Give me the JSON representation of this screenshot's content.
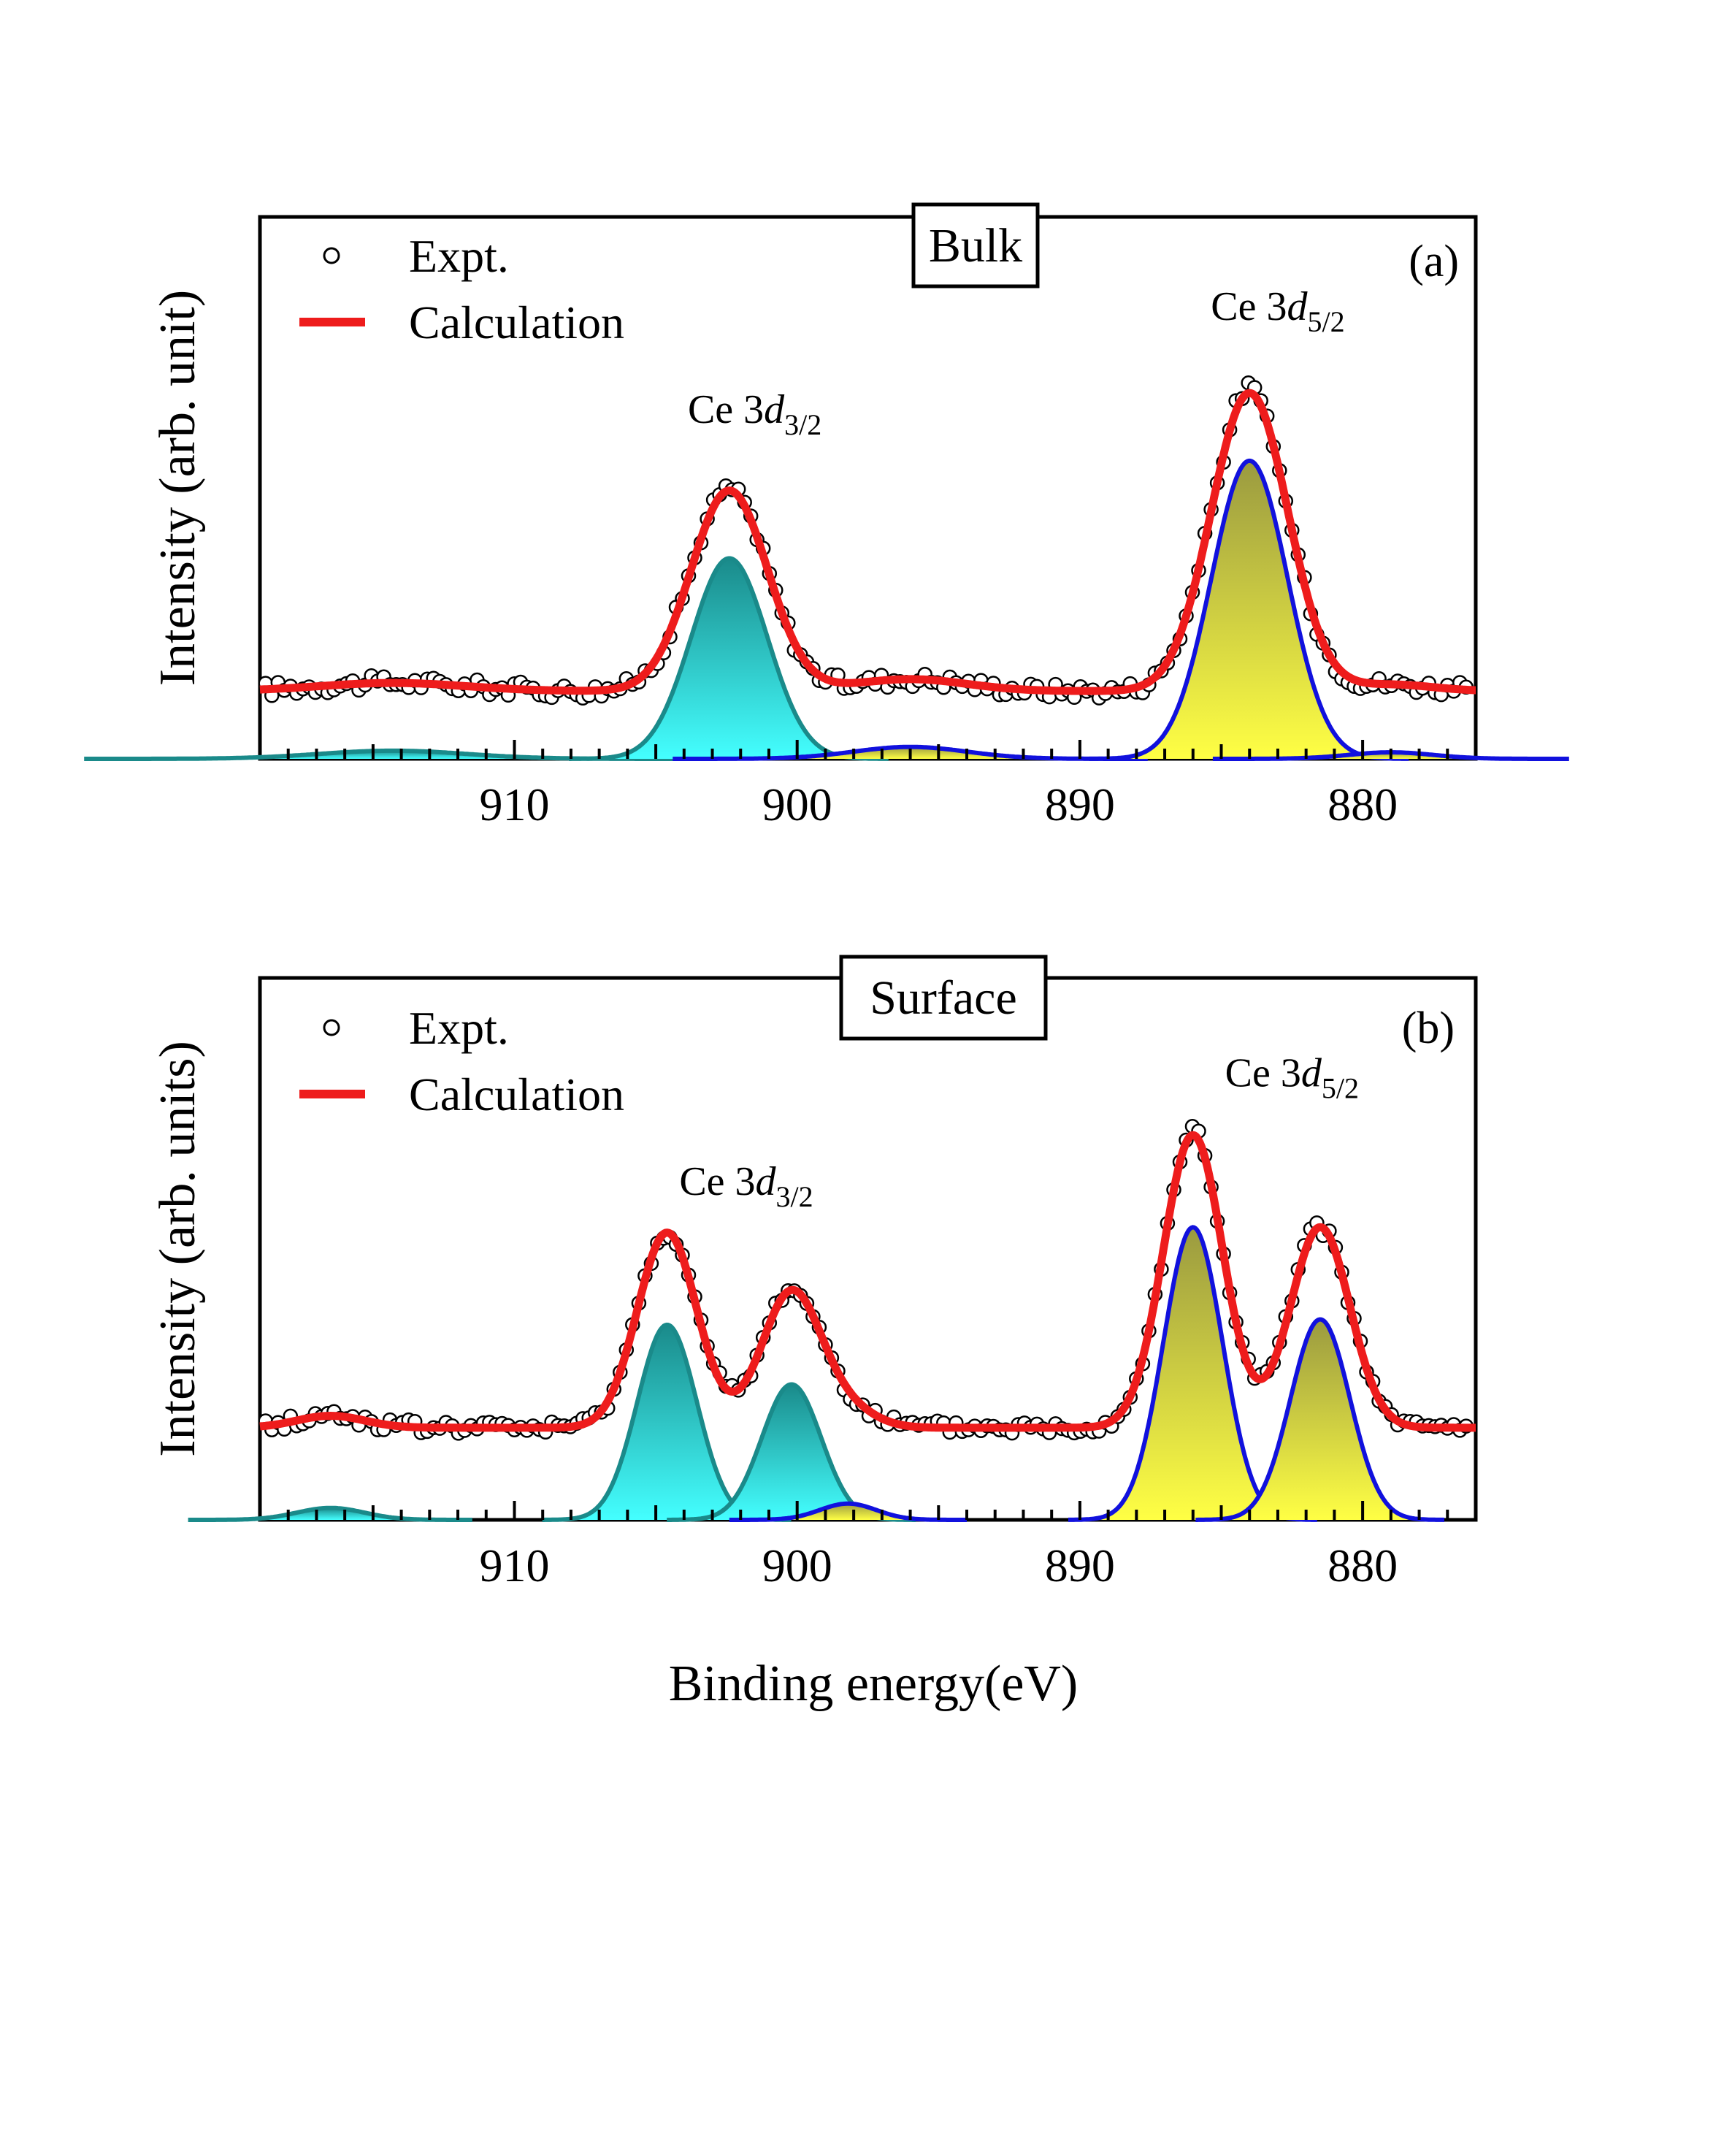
{
  "figure": {
    "x_axis_title": "Binding energy(eV)"
  },
  "chart_data": [
    {
      "type": "line",
      "panel_id": "a",
      "box_title": "Bulk",
      "panel_label": "(a)",
      "ylabel": "Intensity (arb. unit)",
      "xlim": [
        919,
        876
      ],
      "ylim": [
        0,
        100
      ],
      "x_ticks": [
        910,
        900,
        890,
        880
      ],
      "x_tick_labels": [
        "910",
        "900",
        "890",
        "880"
      ],
      "legend": {
        "position": "top-left",
        "entries": [
          "Expt.",
          "Calculation"
        ]
      },
      "peak_labels": [
        {
          "main": "Ce 3",
          "italic": "d",
          "sub": "3/2",
          "x": 901.5,
          "y": 62
        },
        {
          "main": "Ce 3",
          "italic": "d",
          "sub": "5/2",
          "x": 883.0,
          "y": 81
        }
      ],
      "colors": {
        "expt": "#000000",
        "calc": "#ee1c1c",
        "comp_3d32_line": "#1a8a8a",
        "comp_3d32_fill_top": "#1a8a8a",
        "comp_3d32_fill_bottom": "#44ffff",
        "comp_3d52_line": "#1111dd",
        "comp_3d52_fill_top": "#9a9a40",
        "comp_3d52_fill_bottom": "#ffff44"
      },
      "baseline": 12.5,
      "components": [
        {
          "name": "3d3/2 satellite",
          "group": "3d32",
          "center": 914.3,
          "sigma": 2.6,
          "amp": 1.5
        },
        {
          "name": "3d3/2 main",
          "group": "3d32",
          "center": 902.4,
          "sigma": 1.35,
          "amp": 37
        },
        {
          "name": "3d5/2 satellite 1",
          "group": "3d52",
          "center": 896.0,
          "sigma": 2.0,
          "amp": 2.2
        },
        {
          "name": "3d5/2 main",
          "group": "3d52",
          "center": 884.0,
          "sigma": 1.35,
          "amp": 55
        },
        {
          "name": "3d5/2 tail",
          "group": "3d52",
          "center": 879.0,
          "sigma": 1.5,
          "amp": 1.2
        }
      ],
      "experimental_noise": 1.4,
      "experimental_step": 0.22
    },
    {
      "type": "line",
      "panel_id": "b",
      "box_title": "Surface",
      "panel_label": "(b)",
      "ylabel": "Intensity (arb. units)",
      "xlim": [
        919,
        876
      ],
      "ylim": [
        0,
        100
      ],
      "x_ticks": [
        910,
        900,
        890,
        880
      ],
      "x_tick_labels": [
        "910",
        "900",
        "890",
        "880"
      ],
      "legend": {
        "position": "top-left",
        "entries": [
          "Expt.",
          "Calculation"
        ]
      },
      "peak_labels": [
        {
          "main": "Ce 3",
          "italic": "d",
          "sub": "3/2",
          "x": 901.8,
          "y": 60
        },
        {
          "main": "Ce 3",
          "italic": "d",
          "sub": "5/2",
          "x": 882.5,
          "y": 80
        }
      ],
      "colors": {
        "expt": "#000000",
        "calc": "#ee1c1c",
        "comp_3d32_line": "#1a8a8a",
        "comp_3d32_fill_top": "#1a8a8a",
        "comp_3d32_fill_bottom": "#44ffff",
        "comp_3d52_line": "#1111dd",
        "comp_3d52_fill_top": "#9a9a40",
        "comp_3d52_fill_bottom": "#ffff44"
      },
      "baseline": 17,
      "components": [
        {
          "name": "3d3/2 satellite",
          "group": "3d32",
          "center": 916.5,
          "sigma": 1.2,
          "amp": 2.2
        },
        {
          "name": "3d3/2 peak 1",
          "group": "3d32",
          "center": 904.6,
          "sigma": 1.05,
          "amp": 36
        },
        {
          "name": "3d3/2 peak 2",
          "group": "3d32",
          "center": 900.2,
          "sigma": 1.05,
          "amp": 25
        },
        {
          "name": "3d5/2 satellite",
          "group": "3d52",
          "center": 898.2,
          "sigma": 1.0,
          "amp": 3.0
        },
        {
          "name": "3d5/2 peak 1",
          "group": "3d52",
          "center": 886.0,
          "sigma": 1.05,
          "amp": 54
        },
        {
          "name": "3d5/2 peak 2",
          "group": "3d52",
          "center": 881.5,
          "sigma": 1.05,
          "amp": 37
        }
      ],
      "experimental_noise": 1.3,
      "experimental_step": 0.22
    }
  ]
}
